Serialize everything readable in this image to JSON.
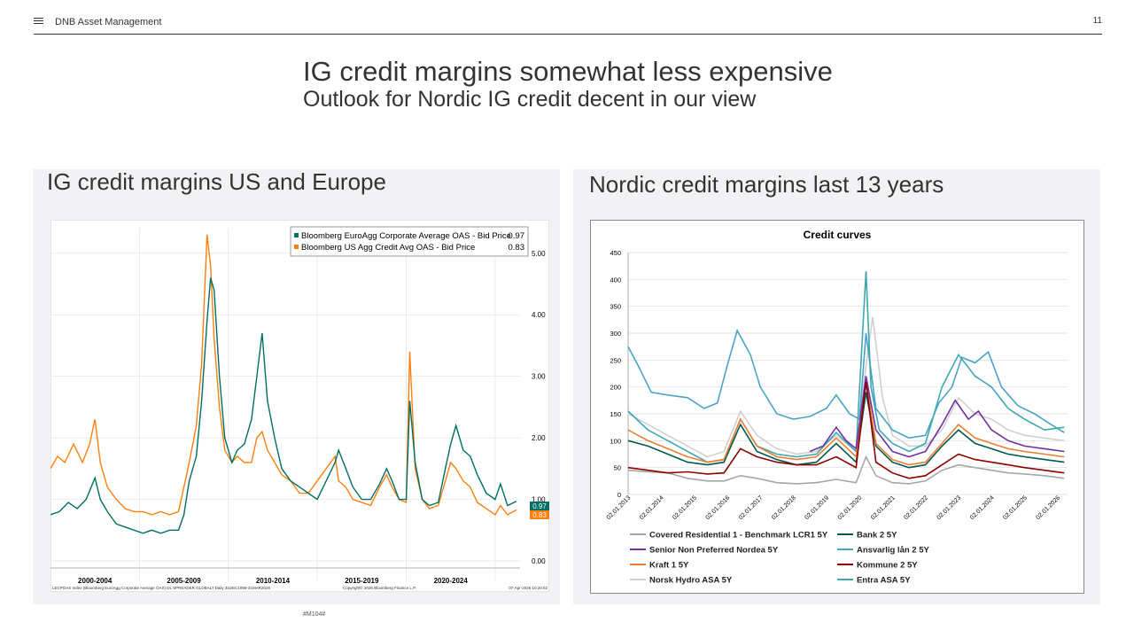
{
  "header": {
    "brand": "DNB Asset Management",
    "page_number": "11",
    "menu_icon": "hamburger-icon"
  },
  "title": "IG credit margins somewhat less expensive",
  "subtitle": "Outlook for Nordic IG credit decent in our view",
  "footnote": "#M104#",
  "colors": {
    "euro": "#006f63",
    "us": "#ff7f0e",
    "covered": "#a6a6a6",
    "bank": "#00594f",
    "senior": "#7030a0",
    "ansvarlig": "#4ba3c7",
    "kraft": "#ed7d31",
    "kommune": "#8b0000",
    "hydro": "#d0d0d0",
    "entra": "#3ea8b0"
  },
  "chart_data": [
    {
      "type": "line",
      "panel_title": "IG credit margins US and Europe",
      "legend": {
        "entries": [
          {
            "label": "Bloomberg EuroAgg Corporate Average OAS - Bid Price",
            "value": "0.97"
          },
          {
            "label": "Bloomberg US Agg Credit Avg OAS - Bid Price",
            "value": "0.83"
          }
        ],
        "placement": "top-right"
      },
      "ylim": [
        0,
        5.4
      ],
      "y_ticks": [
        "5.00",
        "4.00",
        "3.00",
        "2.00",
        "1.00",
        "0.00"
      ],
      "x_ticks": [
        "2000-2004",
        "2005-2009",
        "2010-2014",
        "2015-2019",
        "2020-2024"
      ],
      "last_labels": {
        "euro": "0.97",
        "us": "0.83"
      },
      "source_text": "LECPOAS Index (Bloomberg EuroAgg Corporate Average OAS) DL SPREADER GLOBALT Daily 31DEC1999-31MAR2026",
      "copyright": "Copyright© 2026 Bloomberg Finance L.P.",
      "timestamp": "07-Apr-2026 10:20:52",
      "series": [
        {
          "name": "Bloomberg EuroAgg Corporate Average OAS - Bid Price",
          "x": [
            2000.0,
            2000.5,
            2001.0,
            2001.5,
            2002.0,
            2002.5,
            2002.8,
            2003.2,
            2003.7,
            2004.2,
            2004.7,
            2005.2,
            2005.7,
            2006.2,
            2006.7,
            2007.2,
            2007.5,
            2007.8,
            2008.2,
            2008.5,
            2008.8,
            2009.0,
            2009.2,
            2009.5,
            2009.8,
            2010.2,
            2010.5,
            2010.9,
            2011.3,
            2011.6,
            2011.9,
            2012.2,
            2012.6,
            2013.0,
            2013.5,
            2014.0,
            2014.5,
            2015.0,
            2015.5,
            2016.0,
            2016.2,
            2016.6,
            2017.0,
            2017.5,
            2018.0,
            2018.5,
            2018.9,
            2019.2,
            2019.6,
            2020.0,
            2020.2,
            2020.5,
            2020.9,
            2021.3,
            2021.8,
            2022.2,
            2022.5,
            2022.8,
            2023.2,
            2023.6,
            2024.0,
            2024.5,
            2025.0,
            2025.3,
            2025.7,
            2026.2
          ],
          "values": [
            0.75,
            0.8,
            0.95,
            0.85,
            1.0,
            1.35,
            1.0,
            0.8,
            0.6,
            0.55,
            0.5,
            0.45,
            0.5,
            0.45,
            0.5,
            0.5,
            0.75,
            1.3,
            1.7,
            2.6,
            3.9,
            4.6,
            4.4,
            3.0,
            2.0,
            1.6,
            1.8,
            1.9,
            2.3,
            3.0,
            3.7,
            2.6,
            2.0,
            1.5,
            1.3,
            1.2,
            1.1,
            1.0,
            1.3,
            1.6,
            1.8,
            1.5,
            1.2,
            1.0,
            1.0,
            1.25,
            1.5,
            1.3,
            1.0,
            1.0,
            2.6,
            1.6,
            1.0,
            0.9,
            0.95,
            1.5,
            1.9,
            2.2,
            1.8,
            1.7,
            1.4,
            1.1,
            1.0,
            1.25,
            0.9,
            0.97
          ]
        },
        {
          "name": "Bloomberg US Agg Credit Avg OAS - Bid Price",
          "x": [
            2000.0,
            2000.4,
            2000.8,
            2001.3,
            2001.8,
            2002.2,
            2002.5,
            2002.8,
            2003.2,
            2003.7,
            2004.2,
            2004.7,
            2005.2,
            2005.7,
            2006.2,
            2006.7,
            2007.2,
            2007.5,
            2007.8,
            2008.2,
            2008.5,
            2008.8,
            2009.0,
            2009.2,
            2009.5,
            2009.8,
            2010.2,
            2010.5,
            2010.9,
            2011.3,
            2011.6,
            2011.9,
            2012.2,
            2012.6,
            2013.0,
            2013.5,
            2014.0,
            2014.5,
            2015.0,
            2015.5,
            2016.0,
            2016.2,
            2016.6,
            2017.0,
            2017.5,
            2018.0,
            2018.5,
            2018.9,
            2019.2,
            2019.6,
            2020.0,
            2020.2,
            2020.5,
            2020.9,
            2021.3,
            2021.8,
            2022.2,
            2022.5,
            2022.8,
            2023.2,
            2023.6,
            2024.0,
            2024.5,
            2025.0,
            2025.3,
            2025.7,
            2026.2
          ],
          "values": [
            1.5,
            1.7,
            1.6,
            1.9,
            1.6,
            1.9,
            2.3,
            1.6,
            1.2,
            1.0,
            0.85,
            0.8,
            0.8,
            0.75,
            0.8,
            0.75,
            0.8,
            1.2,
            1.6,
            2.2,
            3.2,
            5.3,
            4.8,
            3.6,
            2.5,
            1.8,
            1.6,
            1.7,
            1.6,
            1.6,
            2.0,
            2.1,
            1.8,
            1.6,
            1.4,
            1.3,
            1.1,
            1.1,
            1.3,
            1.5,
            1.7,
            1.3,
            1.2,
            1.0,
            0.95,
            0.9,
            1.2,
            1.4,
            1.2,
            1.0,
            0.95,
            3.4,
            1.5,
            1.0,
            0.85,
            0.9,
            1.3,
            1.6,
            1.5,
            1.3,
            1.2,
            0.95,
            0.85,
            0.75,
            0.9,
            0.75,
            0.83
          ]
        }
      ]
    },
    {
      "type": "line",
      "panel_title": "Nordic credit margins last 13 years",
      "title": "Credit curves",
      "ylim": [
        0,
        450
      ],
      "y_ticks": [
        0,
        50,
        100,
        150,
        200,
        250,
        300,
        350,
        400,
        450
      ],
      "x_tick_labels": [
        "02.01.2013",
        "02.01.2014",
        "02.01.2015",
        "02.01.2016",
        "02.01.2017",
        "02.01.2018",
        "02.01.2019",
        "02.01.2020",
        "02.01.2021",
        "02.01.2022",
        "02.01.2023",
        "02.01.2024",
        "02.01.2025",
        "02.01.2026"
      ],
      "x_start": 2013.0,
      "x_end": 2026.3,
      "legend": {
        "placement": "bottom"
      },
      "series": [
        {
          "name": "Covered Residential 1 - Benchmark LCR1 5Y",
          "color_key": "covered",
          "x": [
            2013.0,
            2013.6,
            2014.2,
            2014.8,
            2015.4,
            2015.9,
            2016.4,
            2016.9,
            2017.5,
            2018.1,
            2018.7,
            2019.3,
            2019.9,
            2020.2,
            2020.5,
            2021.0,
            2021.5,
            2022.0,
            2022.5,
            2023.0,
            2023.5,
            2024.0,
            2024.5,
            2025.0,
            2025.6,
            2026.2
          ],
          "values": [
            45,
            42,
            40,
            30,
            25,
            25,
            35,
            30,
            22,
            20,
            22,
            28,
            22,
            70,
            35,
            22,
            20,
            25,
            45,
            55,
            50,
            45,
            40,
            38,
            35,
            30
          ]
        },
        {
          "name": "Bank 2 5Y",
          "color_key": "bank",
          "x": [
            2013.0,
            2013.6,
            2014.2,
            2014.8,
            2015.4,
            2015.9,
            2016.4,
            2016.9,
            2017.5,
            2018.1,
            2018.7,
            2019.3,
            2019.9,
            2020.2,
            2020.5,
            2021.0,
            2021.5,
            2022.0,
            2022.5,
            2023.0,
            2023.5,
            2024.0,
            2024.5,
            2025.0,
            2025.6,
            2026.2
          ],
          "values": [
            100,
            90,
            75,
            60,
            55,
            60,
            130,
            80,
            65,
            55,
            60,
            95,
            60,
            190,
            90,
            60,
            50,
            55,
            90,
            120,
            95,
            85,
            75,
            70,
            65,
            60
          ]
        },
        {
          "name": "Senior Non Preferred Nordea 5Y",
          "color_key": "senior",
          "x": [
            2018.5,
            2018.9,
            2019.3,
            2019.6,
            2019.9,
            2020.2,
            2020.5,
            2021.0,
            2021.5,
            2022.0,
            2022.5,
            2022.9,
            2023.3,
            2023.6,
            2024.0,
            2024.5,
            2025.0,
            2025.6,
            2026.2
          ],
          "values": [
            80,
            90,
            125,
            100,
            85,
            220,
            120,
            80,
            70,
            80,
            130,
            175,
            140,
            155,
            120,
            100,
            90,
            85,
            80
          ]
        },
        {
          "name": "Ansvarlig lån 2 5Y",
          "color_key": "ansvarlig",
          "x": [
            2013.0,
            2013.3,
            2013.7,
            2014.2,
            2014.8,
            2015.3,
            2015.7,
            2016.0,
            2016.3,
            2016.7,
            2017.0,
            2017.5,
            2018.0,
            2018.5,
            2019.0,
            2019.3,
            2019.7,
            2020.0,
            2020.2,
            2020.5,
            2021.0,
            2021.5,
            2022.0,
            2022.4,
            2022.8,
            2023.1,
            2023.5,
            2023.9,
            2024.3,
            2024.8,
            2025.3,
            2025.8,
            2026.2
          ],
          "values": [
            275,
            240,
            190,
            185,
            180,
            160,
            170,
            240,
            305,
            260,
            200,
            150,
            140,
            145,
            160,
            185,
            150,
            140,
            300,
            160,
            120,
            105,
            110,
            170,
            200,
            255,
            245,
            265,
            200,
            165,
            150,
            130,
            115
          ]
        },
        {
          "name": "Kraft 1 5Y",
          "color_key": "kraft",
          "x": [
            2013.0,
            2013.6,
            2014.2,
            2014.8,
            2015.4,
            2015.9,
            2016.4,
            2016.9,
            2017.5,
            2018.1,
            2018.7,
            2019.3,
            2019.9,
            2020.2,
            2020.5,
            2021.0,
            2021.5,
            2022.0,
            2022.5,
            2023.0,
            2023.5,
            2024.0,
            2024.5,
            2025.0,
            2025.6,
            2026.2
          ],
          "values": [
            120,
            100,
            85,
            70,
            60,
            65,
            140,
            90,
            70,
            65,
            70,
            105,
            70,
            210,
            95,
            65,
            55,
            60,
            95,
            130,
            105,
            95,
            85,
            80,
            75,
            70
          ]
        },
        {
          "name": "Kommune 2 5Y",
          "color_key": "kommune",
          "x": [
            2013.0,
            2013.6,
            2014.2,
            2014.8,
            2015.4,
            2015.9,
            2016.4,
            2016.9,
            2017.5,
            2018.1,
            2018.7,
            2019.3,
            2019.9,
            2020.2,
            2020.5,
            2021.0,
            2021.5,
            2022.0,
            2022.5,
            2023.0,
            2023.5,
            2024.0,
            2024.5,
            2025.0,
            2025.6,
            2026.2
          ],
          "values": [
            50,
            45,
            40,
            42,
            38,
            40,
            85,
            70,
            60,
            55,
            55,
            70,
            50,
            210,
            60,
            40,
            30,
            35,
            55,
            75,
            65,
            60,
            55,
            50,
            45,
            40
          ]
        },
        {
          "name": "Norsk Hydro ASA 5Y",
          "color_key": "hydro",
          "x": [
            2013.0,
            2013.6,
            2014.2,
            2014.8,
            2015.4,
            2015.9,
            2016.4,
            2016.9,
            2017.5,
            2018.1,
            2018.7,
            2019.3,
            2019.9,
            2020.2,
            2020.4,
            2020.7,
            2021.0,
            2021.5,
            2022.0,
            2022.5,
            2023.0,
            2023.5,
            2024.0,
            2024.5,
            2025.0,
            2025.6,
            2026.2
          ],
          "values": [
            150,
            130,
            110,
            90,
            70,
            80,
            155,
            110,
            85,
            75,
            80,
            110,
            80,
            240,
            330,
            180,
            110,
            90,
            90,
            120,
            180,
            150,
            140,
            120,
            110,
            105,
            100
          ]
        },
        {
          "name": "Entra ASA 5Y",
          "color_key": "entra",
          "x": [
            2013.0,
            2013.6,
            2014.2,
            2014.8,
            2015.4,
            2015.9,
            2016.4,
            2016.9,
            2017.5,
            2018.1,
            2018.7,
            2019.3,
            2019.9,
            2020.2,
            2020.35,
            2020.6,
            2021.0,
            2021.5,
            2022.0,
            2022.5,
            2023.0,
            2023.5,
            2024.0,
            2024.5,
            2025.0,
            2025.6,
            2026.2
          ],
          "values": [
            155,
            120,
            100,
            80,
            60,
            65,
            140,
            90,
            75,
            70,
            75,
            115,
            80,
            415,
            200,
            120,
            95,
            80,
            95,
            200,
            260,
            220,
            200,
            160,
            140,
            120,
            125
          ]
        }
      ]
    }
  ]
}
